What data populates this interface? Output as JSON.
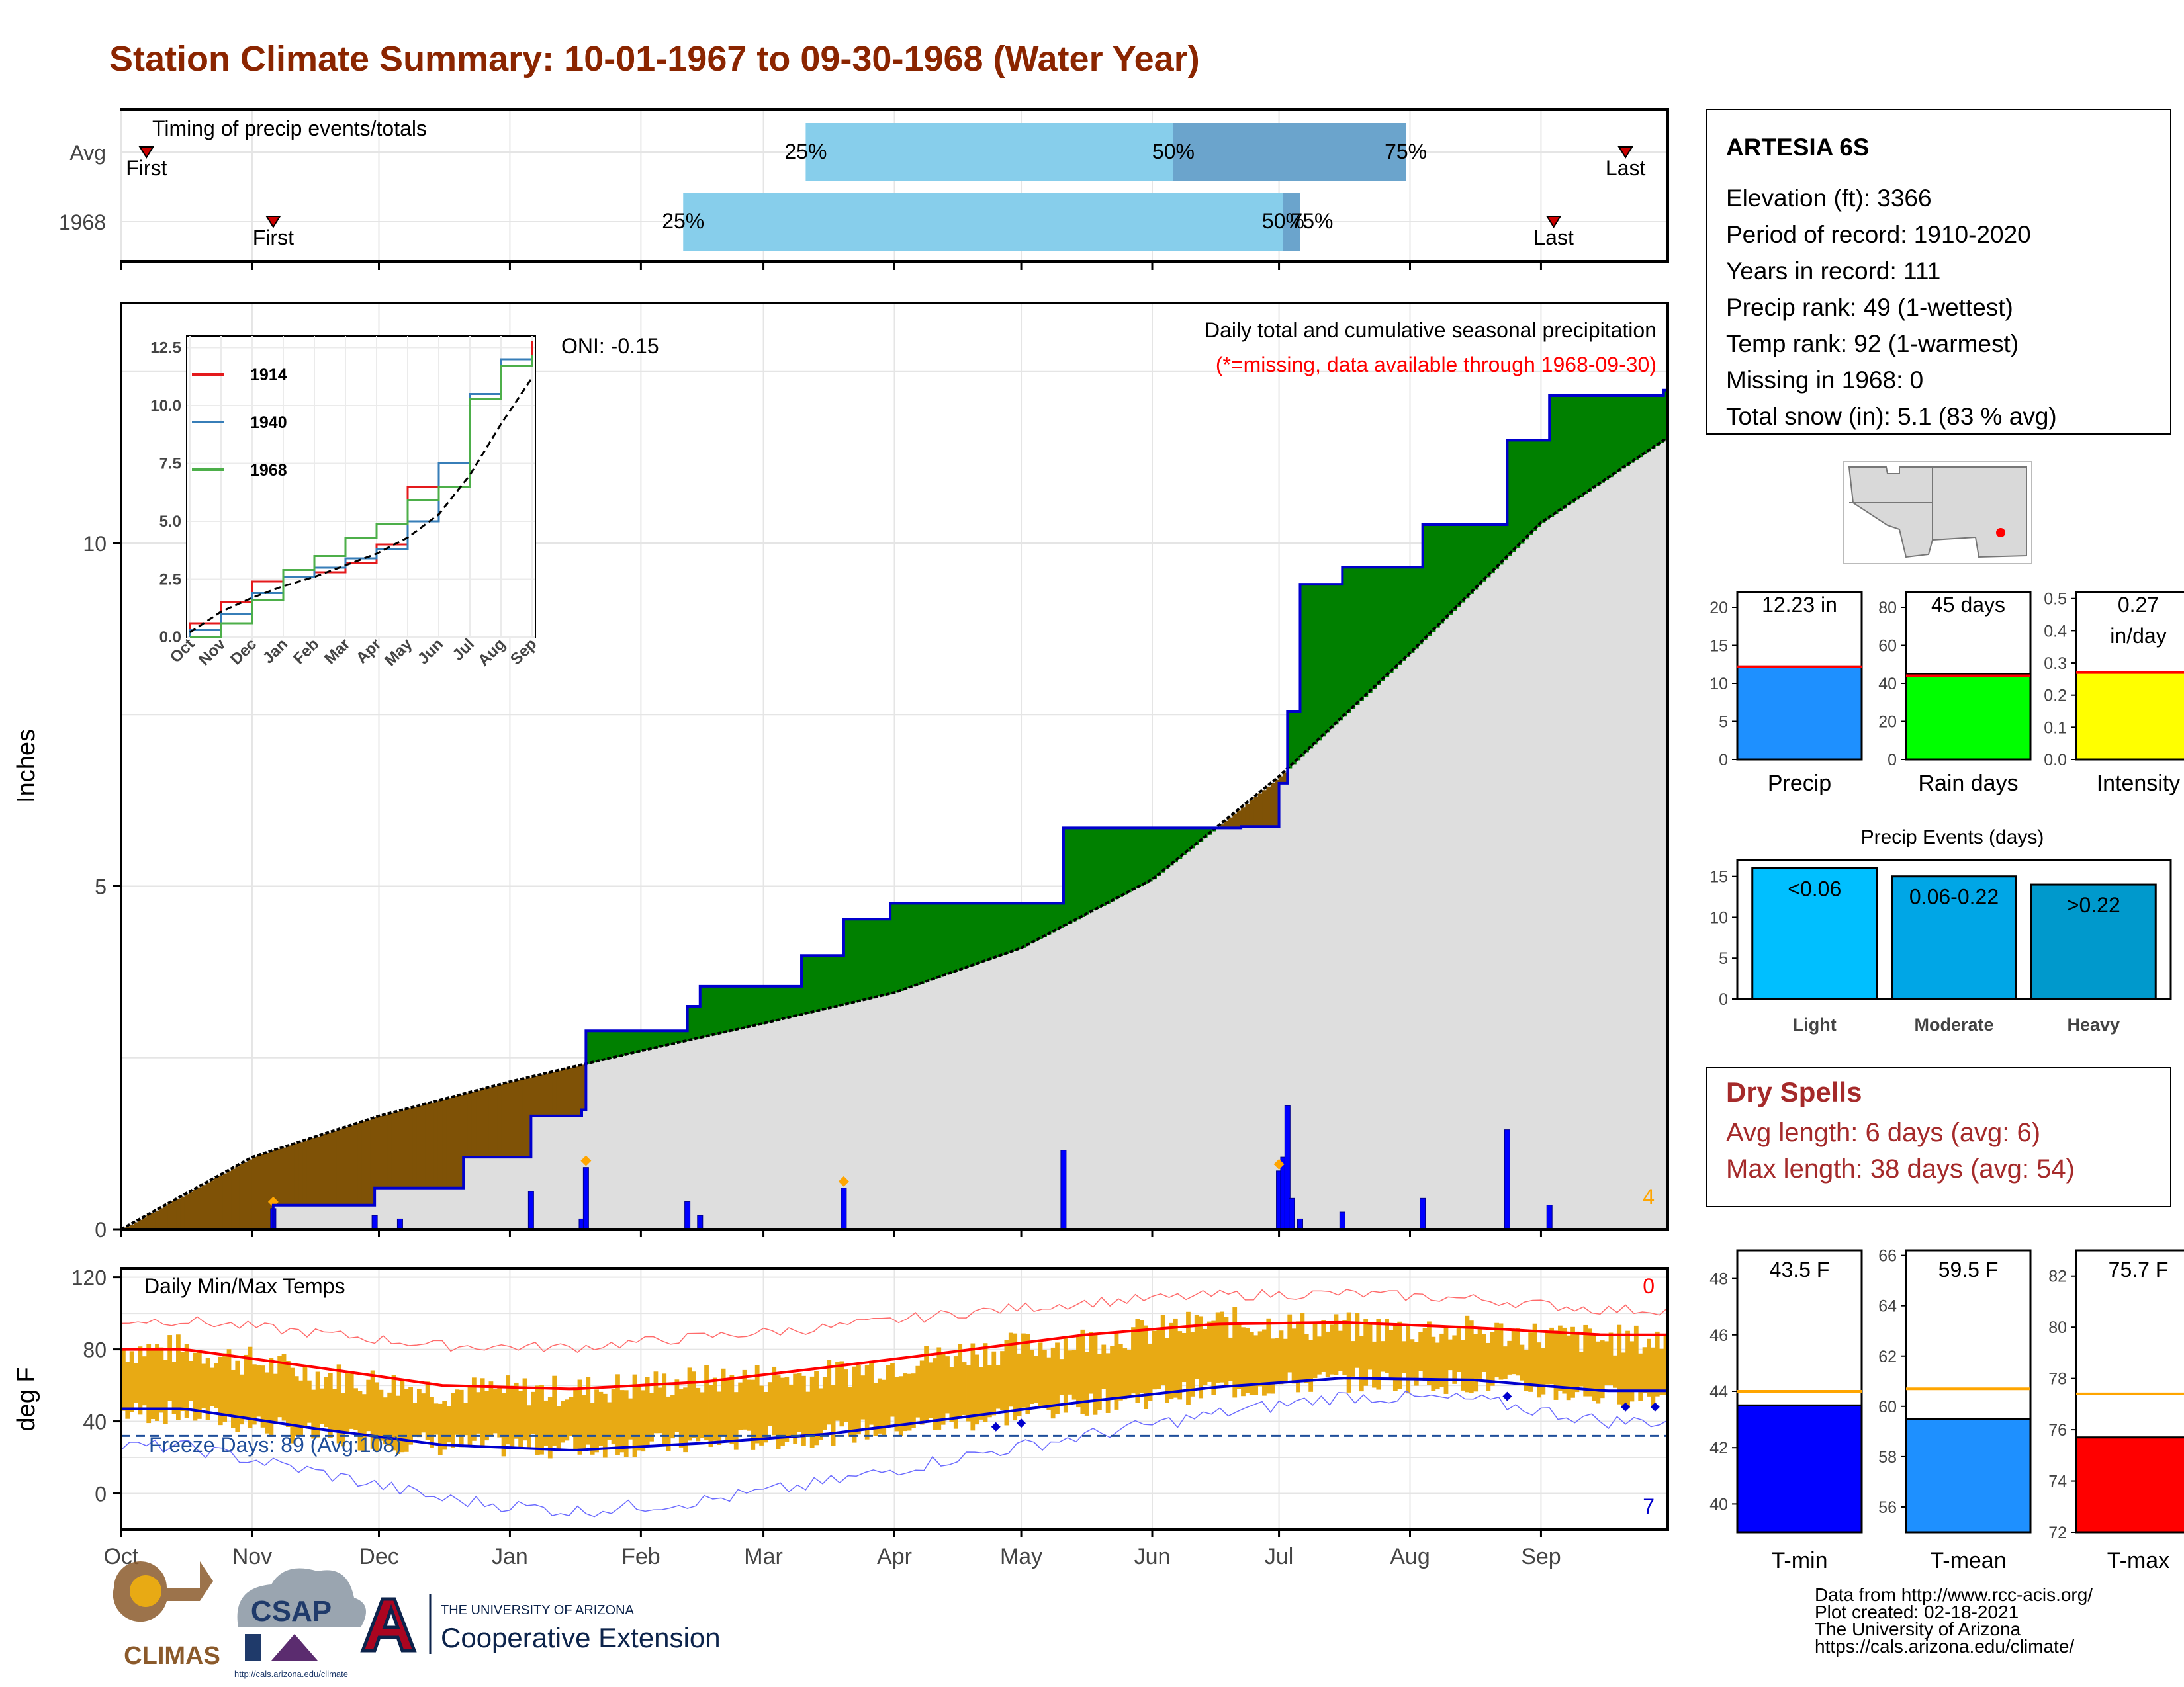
{
  "title": "Station Climate Summary: 10-01-1967 to 09-30-1968 (Water Year)",
  "colors": {
    "title": "#8B2500",
    "quartile_light": "#87CEEB",
    "quartile_dark": "#6BA4CC",
    "cum_line": "#0000CD",
    "surplus": "#008000",
    "deficit": "#7F5206",
    "normal_fill": "#DEDEDE",
    "event_light": "#00BFFF",
    "event_moderate": "#00A6E6",
    "event_heavy": "#0099CC",
    "tmax_line": "#FF0000",
    "tmin_line": "#0000CD",
    "temp_bars": "#E8AA14",
    "dryspell": "#A52A2A"
  },
  "timing": {
    "title": "Timing of precip events/totals",
    "rows": [
      "Avg",
      "1968"
    ],
    "pct_labels": [
      "25%",
      "50%",
      "75%"
    ],
    "first_label": "First",
    "last_label": "Last"
  },
  "precip": {
    "ylabel": "Inches",
    "yticks": [
      "0",
      "5",
      "10"
    ],
    "header": "Daily total and cumulative seasonal precipitation",
    "subheader": "(*=missing, data available through 1968-09-30)",
    "oni": "ONI: -0.15",
    "corner_count": "4"
  },
  "inset": {
    "yticks": [
      "0.0",
      "2.5",
      "5.0",
      "7.5",
      "10.0",
      "12.5"
    ],
    "xticks": [
      "Oct",
      "Nov",
      "Dec",
      "Jan",
      "Feb",
      "Mar",
      "Apr",
      "May",
      "Jun",
      "Jul",
      "Aug",
      "Sep"
    ],
    "legend": [
      {
        "name": "1914",
        "color": "#E41A1C"
      },
      {
        "name": "1940",
        "color": "#377EB8"
      },
      {
        "name": "1968",
        "color": "#4DAF4A"
      }
    ]
  },
  "temps": {
    "ylabel": "deg F",
    "yticks": [
      "0",
      "40",
      "80",
      "120"
    ],
    "header": "Daily Min/Max Temps",
    "freeze": "Freeze Days: 89 (Avg:108)",
    "corner_top": "0",
    "corner_bottom": "7"
  },
  "months": [
    "Oct",
    "Nov",
    "Dec",
    "Jan",
    "Feb",
    "Mar",
    "Apr",
    "May",
    "Jun",
    "Jul",
    "Aug",
    "Sep"
  ],
  "station": {
    "name": "ARTESIA 6S",
    "lines": [
      "Elevation (ft): 3366",
      "Period of record: 1910-2020",
      "Years in record: 111",
      "Precip rank: 49 (1-wettest)",
      "Temp rank: 92 (1-warmest)",
      "Missing in 1968: 0",
      "Total snow (in): 5.1 (83 % avg)"
    ]
  },
  "stats": {
    "precip": {
      "label": "Precip",
      "value_text": "12.23 in",
      "yticks": [
        "0",
        "5",
        "10",
        "15",
        "20"
      ]
    },
    "raindays": {
      "label": "Rain days",
      "value_text": "45 days",
      "yticks": [
        "0",
        "20",
        "40",
        "60",
        "80"
      ]
    },
    "intensity": {
      "label": "Intensity",
      "value_text": "0.27",
      "value_unit": "in/day",
      "yticks": [
        "0.0",
        "0.1",
        "0.2",
        "0.3",
        "0.4",
        "0.5"
      ]
    }
  },
  "events": {
    "title": "Precip Events (days)",
    "yticks": [
      "0",
      "5",
      "10",
      "15"
    ],
    "bars": [
      {
        "bin": "<0.06",
        "label": "Light"
      },
      {
        "bin": "0.06-0.22",
        "label": "Moderate"
      },
      {
        "bin": ">0.22",
        "label": "Heavy"
      }
    ]
  },
  "dryspells": {
    "title": "Dry Spells",
    "avg": "Avg length: 6 days (avg: 6)",
    "max": "Max length: 38 days (avg: 54)"
  },
  "tempstats": {
    "tmin": {
      "label": "T-min",
      "value_text": "43.5 F",
      "yticks": [
        "40",
        "42",
        "44",
        "46",
        "48"
      ]
    },
    "tmean": {
      "label": "T-mean",
      "value_text": "59.5 F",
      "yticks": [
        "56",
        "58",
        "60",
        "62",
        "64",
        "66"
      ]
    },
    "tmax": {
      "label": "T-max",
      "value_text": "75.7 F",
      "yticks": [
        "72",
        "74",
        "76",
        "78",
        "80",
        "82"
      ]
    }
  },
  "logos": {
    "climas": "CLIMAS",
    "csap": "CSAP",
    "csap_url": "http://cals.arizona.edu/climate",
    "ua_top": "THE UNIVERSITY OF ARIZONA",
    "ua_bottom": "Cooperative Extension"
  },
  "credits": [
    "Data from http://www.rcc-acis.org/",
    "Plot created: 02-18-2021",
    "The University of Arizona",
    "https://cals.arizona.edu/climate/"
  ],
  "chart_data": [
    {
      "type": "bar",
      "name": "timing",
      "title": "Timing of precip events/totals",
      "categories": [
        "Avg",
        "1968"
      ],
      "series": [
        {
          "name": "First",
          "values": [
            "1967-10-07",
            "1967-11-06"
          ]
        },
        {
          "name": "25%",
          "values": [
            "1968-03-11",
            "1968-02-11"
          ]
        },
        {
          "name": "50%",
          "values": [
            "1968-06-06",
            "1968-07-02"
          ]
        },
        {
          "name": "75%",
          "values": [
            "1968-07-31",
            "1968-07-06"
          ]
        },
        {
          "name": "Last",
          "values": [
            "1968-09-21",
            "1968-09-04"
          ]
        }
      ]
    },
    {
      "type": "area",
      "name": "cumulative_precip",
      "title": "Daily total and cumulative seasonal precipitation",
      "ylabel": "Inches",
      "ylim": [
        0,
        13.5
      ],
      "grid": true,
      "series": [
        {
          "name": "observed_cumulative",
          "x": [
            "1967-10-01",
            "1967-11-05",
            "1967-11-06",
            "1967-11-30",
            "1967-12-21",
            "1968-01-06",
            "1968-01-18",
            "1968-01-19",
            "1968-02-12",
            "1968-02-15",
            "1968-03-10",
            "1968-03-20",
            "1968-03-31",
            "1968-05-11",
            "1968-06-22",
            "1968-07-01",
            "1968-07-03",
            "1968-07-06",
            "1968-07-16",
            "1968-08-04",
            "1968-08-24",
            "1968-09-03",
            "1968-09-30"
          ],
          "values": [
            0.0,
            0.0,
            0.35,
            0.6,
            1.05,
            1.65,
            1.74,
            2.89,
            3.25,
            3.54,
            3.99,
            4.52,
            4.75,
            5.85,
            5.87,
            6.5,
            7.55,
            9.4,
            9.65,
            10.27,
            11.5,
            12.15,
            12.23
          ]
        },
        {
          "name": "average_cumulative",
          "x": [
            "1967-10-01",
            "1967-11-01",
            "1967-12-01",
            "1968-01-01",
            "1968-02-01",
            "1968-03-01",
            "1968-04-01",
            "1968-05-01",
            "1968-06-01",
            "1968-07-01",
            "1968-08-01",
            "1968-09-01",
            "1968-09-30"
          ],
          "values": [
            0.0,
            1.05,
            1.65,
            2.15,
            2.6,
            3.0,
            3.45,
            4.1,
            5.1,
            6.6,
            8.4,
            10.3,
            11.5
          ]
        }
      ],
      "daily_bars": {
        "x": [
          "1967-11-06",
          "1967-11-30",
          "1967-12-06",
          "1968-01-06",
          "1968-01-18",
          "1968-01-19",
          "1968-02-12",
          "1968-02-15",
          "1968-03-20",
          "1968-05-11",
          "1968-07-01",
          "1968-07-02",
          "1968-07-03",
          "1968-07-04",
          "1968-07-06",
          "1968-07-16",
          "1968-08-04",
          "1968-08-24",
          "1968-09-03"
        ],
        "values": [
          0.3,
          0.2,
          0.15,
          0.55,
          0.15,
          0.9,
          0.4,
          0.2,
          0.6,
          1.15,
          0.85,
          1.05,
          1.8,
          0.45,
          0.15,
          0.25,
          0.45,
          1.45,
          0.35
        ]
      },
      "annotations": [
        "ONI: -0.15",
        "(*=missing, data available through 1968-09-30)"
      ]
    },
    {
      "type": "line",
      "name": "inset_cumulative",
      "ylim": [
        0,
        13
      ],
      "categories": [
        "Oct",
        "Nov",
        "Dec",
        "Jan",
        "Feb",
        "Mar",
        "Apr",
        "May",
        "Jun",
        "Jul",
        "Aug",
        "Sep"
      ],
      "series": [
        {
          "name": "1914",
          "values": [
            0.6,
            1.5,
            2.4,
            2.6,
            2.8,
            3.2,
            4.0,
            6.5,
            7.5,
            10.5,
            12.0,
            12.8
          ]
        },
        {
          "name": "1940",
          "values": [
            0.3,
            1.0,
            1.9,
            2.6,
            3.0,
            3.4,
            3.8,
            5.0,
            7.5,
            10.5,
            12.0,
            12.2
          ]
        },
        {
          "name": "1968",
          "values": [
            0.0,
            0.6,
            1.6,
            2.9,
            3.5,
            4.3,
            4.9,
            5.9,
            6.5,
            10.3,
            11.7,
            12.2
          ]
        },
        {
          "name": "average",
          "values": [
            0.2,
            1.1,
            1.7,
            2.2,
            2.6,
            3.1,
            3.6,
            4.3,
            5.3,
            7.0,
            9.2,
            11.2
          ]
        }
      ]
    },
    {
      "type": "line",
      "name": "temperatures",
      "title": "Daily Min/Max Temps",
      "ylabel": "deg F",
      "ylim": [
        -20,
        125
      ],
      "x": [
        "Oct",
        "Nov",
        "Dec",
        "Jan",
        "Feb",
        "Mar",
        "Apr",
        "May",
        "Jun",
        "Jul",
        "Aug",
        "Sep"
      ],
      "series": [
        {
          "name": "avg_tmax",
          "values": [
            80,
            70,
            60,
            58,
            62,
            70,
            79,
            88,
            94,
            95,
            92,
            88
          ]
        },
        {
          "name": "avg_tmin",
          "values": [
            47,
            36,
            27,
            24,
            28,
            33,
            42,
            51,
            59,
            64,
            63,
            57
          ]
        },
        {
          "name": "record_high",
          "values": [
            96,
            89,
            82,
            81,
            87,
            92,
            100,
            106,
            110,
            111,
            108,
            102
          ]
        },
        {
          "name": "record_low",
          "values": [
            26,
            12,
            -3,
            -10,
            -4,
            6,
            20,
            32,
            44,
            54,
            52,
            40
          ]
        },
        {
          "name": "obs_tmax",
          "values": [
            80,
            66,
            57,
            57,
            63,
            66,
            78,
            85,
            95,
            92,
            90,
            85
          ]
        },
        {
          "name": "obs_tmin",
          "values": [
            45,
            32,
            27,
            26,
            28,
            33,
            40,
            50,
            58,
            63,
            62,
            54
          ]
        }
      ],
      "freeze_line": 32,
      "annotations": [
        "Freeze Days: 89 (Avg:108)"
      ]
    },
    {
      "type": "bar",
      "name": "season_totals",
      "categories": [
        "Precip",
        "Rain days",
        "Intensity"
      ],
      "values": [
        12.23,
        45,
        0.27
      ],
      "averages": [
        12.2,
        44,
        0.27
      ]
    },
    {
      "type": "bar",
      "name": "precip_events",
      "title": "Precip Events (days)",
      "categories": [
        "<0.06",
        "0.06-0.22",
        ">0.22"
      ],
      "values": [
        16,
        15,
        14
      ]
    },
    {
      "type": "bar",
      "name": "temp_stats",
      "categories": [
        "T-min",
        "T-mean",
        "T-max"
      ],
      "values": [
        43.5,
        59.5,
        75.7
      ],
      "averages": [
        44.0,
        60.7,
        77.4
      ]
    }
  ]
}
